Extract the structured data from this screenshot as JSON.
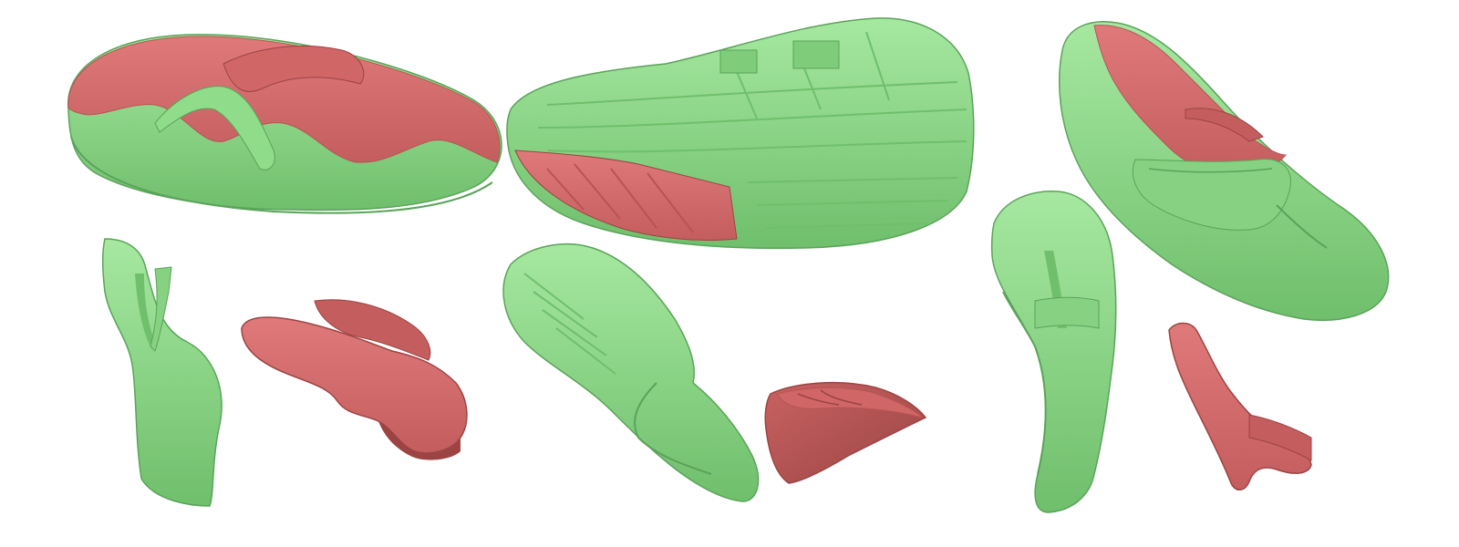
{
  "figure": {
    "panels": [
      {
        "name": "flip-flop-left",
        "parts": [
          {
            "name": "full-model",
            "segments": [
              "green",
              "red"
            ]
          },
          {
            "name": "green-part",
            "segments": [
              "green"
            ]
          },
          {
            "name": "red-part",
            "segments": [
              "red"
            ]
          }
        ]
      },
      {
        "name": "sneaker-center",
        "parts": [
          {
            "name": "full-model",
            "segments": [
              "green",
              "red"
            ]
          },
          {
            "name": "green-part",
            "segments": [
              "green"
            ]
          },
          {
            "name": "red-part",
            "segments": [
              "red"
            ]
          }
        ]
      },
      {
        "name": "flip-flop-right",
        "parts": [
          {
            "name": "full-model",
            "segments": [
              "green",
              "red"
            ]
          },
          {
            "name": "green-part",
            "segments": [
              "green"
            ]
          },
          {
            "name": "red-part",
            "segments": [
              "red"
            ]
          }
        ]
      }
    ],
    "colors": {
      "green": "#8fdc8a",
      "green_shade": "#6fbf6c",
      "green_dark": "#5aa35a",
      "red": "#d46a6a",
      "red_shade": "#b85454",
      "red_dark": "#9c4444",
      "background": "#ffffff"
    }
  }
}
